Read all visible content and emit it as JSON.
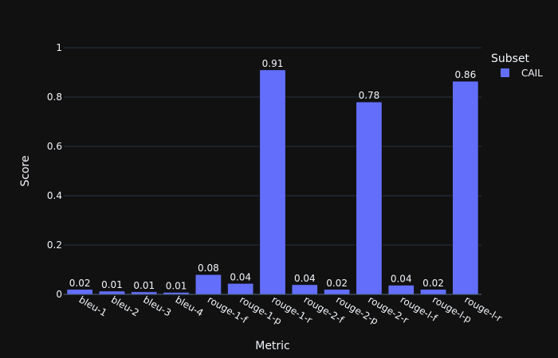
{
  "chart_data": {
    "type": "bar",
    "xlabel": "Metric",
    "ylabel": "Score",
    "ylim": [
      0,
      1
    ],
    "yticks": [
      0,
      0.2,
      0.4,
      0.6,
      0.8,
      1
    ],
    "ytick_labels": [
      "0",
      "0.2",
      "0.4",
      "0.6",
      "0.8",
      "1"
    ],
    "grid": true,
    "categories": [
      "bleu-1",
      "bleu-2",
      "bleu-3",
      "bleu-4",
      "rouge-1-f",
      "rouge-1-p",
      "rouge-1-r",
      "rouge-2-f",
      "rouge-2-p",
      "rouge-2-r",
      "rouge-l-f",
      "rouge-l-p",
      "rouge-l-r"
    ],
    "series": [
      {
        "name": "CAIL",
        "color": "#636efa",
        "values": [
          0.02,
          0.013,
          0.01,
          0.008,
          0.08,
          0.044,
          0.91,
          0.039,
          0.02,
          0.78,
          0.037,
          0.02,
          0.864
        ],
        "labels": [
          "0.02",
          "0.01",
          "0.01",
          "0.01",
          "0.08",
          "0.04",
          "0.91",
          "0.04",
          "0.02",
          "0.78",
          "0.04",
          "0.02",
          "0.86"
        ]
      }
    ],
    "legend": {
      "title": "Subset",
      "position": "top-right"
    },
    "colors": {
      "background": "#111111",
      "grid": "#283442",
      "text": "#f2f5fa",
      "baseline": "#506784"
    }
  }
}
